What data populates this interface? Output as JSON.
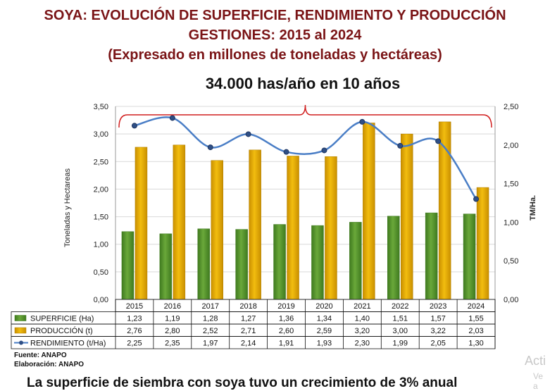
{
  "header": {
    "title_line1": "SOYA: EVOLUCIÓN DE SUPERFICIE, RENDIMIENTO Y PRODUCCIÓN",
    "title_line2": "GESTIONES: 2015 al 2024",
    "title_line3": "(Expresado en millones de toneladas y hectáreas)",
    "subtitle": "34.000 has/año en 10 años"
  },
  "footer": {
    "source": "Fuente: ANAPO",
    "elaboration": "Elaboración: ANAPO",
    "conclusion": "La superficie de siembra con soya tuvo un crecimiento de 3% anual"
  },
  "watermark": {
    "line1": "Acti",
    "line2": "Ve a"
  },
  "colors": {
    "superficie": "#6aa83a",
    "produccion": "#f2bd0f",
    "rendimiento": "#3d6fb3",
    "bracket": "#d11f1f",
    "title": "#7a1416"
  },
  "chart_data": {
    "type": "bar",
    "categories": [
      "2015",
      "2016",
      "2017",
      "2018",
      "2019",
      "2020",
      "2021",
      "2022",
      "2023",
      "2024"
    ],
    "series": [
      {
        "name": "SUPERFICIE (Ha)",
        "type": "bar",
        "axis": "left",
        "values": [
          1.23,
          1.19,
          1.28,
          1.27,
          1.36,
          1.34,
          1.4,
          1.51,
          1.57,
          1.55
        ],
        "labels": [
          "1,23",
          "1,19",
          "1,28",
          "1,27",
          "1,36",
          "1,34",
          "1,40",
          "1,51",
          "1,57",
          "1,55"
        ]
      },
      {
        "name": "PRODUCCIÓN (t)",
        "type": "bar",
        "axis": "left",
        "values": [
          2.76,
          2.8,
          2.52,
          2.71,
          2.6,
          2.59,
          3.2,
          3.0,
          3.22,
          2.03
        ],
        "labels": [
          "2,76",
          "2,80",
          "2,52",
          "2,71",
          "2,60",
          "2,59",
          "3,20",
          "3,00",
          "3,22",
          "2,03"
        ]
      },
      {
        "name": "RENDIMIENTO (t/Ha)",
        "type": "line",
        "axis": "right",
        "values": [
          2.25,
          2.35,
          1.97,
          2.14,
          1.91,
          1.93,
          2.3,
          1.99,
          2.05,
          1.3
        ],
        "labels": [
          "2,25",
          "2,35",
          "1,97",
          "2,14",
          "1,91",
          "1,93",
          "2,30",
          "1,99",
          "2,05",
          "1,30"
        ]
      }
    ],
    "ylabel": "Toneladas y Hectareas",
    "y2label": "TM/Ha.",
    "ylim": [
      0,
      3.5
    ],
    "y2lim": [
      0,
      2.5
    ],
    "yticks": [
      "0,00",
      "0,50",
      "1,00",
      "1,50",
      "2,00",
      "2,50",
      "3,00",
      "3,50"
    ],
    "y2ticks": [
      "0,00",
      "0,50",
      "1,00",
      "1,50",
      "2,00",
      "2,50"
    ],
    "grid": true,
    "legend": "data-table"
  }
}
